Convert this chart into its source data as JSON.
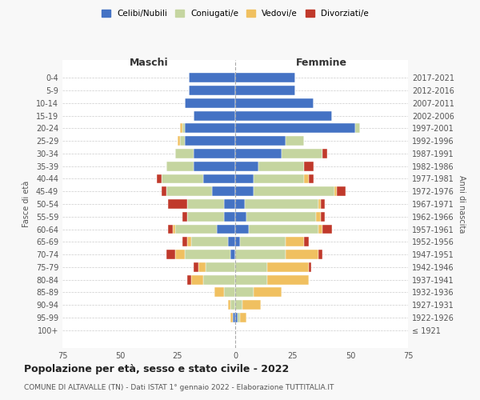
{
  "age_groups": [
    "100+",
    "95-99",
    "90-94",
    "85-89",
    "80-84",
    "75-79",
    "70-74",
    "65-69",
    "60-64",
    "55-59",
    "50-54",
    "45-49",
    "40-44",
    "35-39",
    "30-34",
    "25-29",
    "20-24",
    "15-19",
    "10-14",
    "5-9",
    "0-4"
  ],
  "birth_years": [
    "≤ 1921",
    "1922-1926",
    "1927-1931",
    "1932-1936",
    "1937-1941",
    "1942-1946",
    "1947-1951",
    "1952-1956",
    "1957-1961",
    "1962-1966",
    "1967-1971",
    "1972-1976",
    "1977-1981",
    "1982-1986",
    "1987-1991",
    "1992-1996",
    "1997-2001",
    "2002-2006",
    "2007-2011",
    "2012-2016",
    "2017-2021"
  ],
  "maschi": {
    "celibi": [
      0,
      1,
      0,
      0,
      0,
      0,
      2,
      3,
      8,
      5,
      5,
      10,
      14,
      18,
      18,
      22,
      22,
      18,
      22,
      20,
      20
    ],
    "coniugati": [
      0,
      0,
      2,
      5,
      14,
      13,
      20,
      16,
      18,
      16,
      16,
      20,
      18,
      12,
      8,
      2,
      1,
      0,
      0,
      0,
      0
    ],
    "vedovi": [
      0,
      1,
      1,
      4,
      5,
      3,
      4,
      2,
      1,
      0,
      0,
      0,
      0,
      0,
      0,
      1,
      1,
      0,
      0,
      0,
      0
    ],
    "divorziati": [
      0,
      0,
      0,
      0,
      2,
      2,
      4,
      2,
      2,
      2,
      8,
      2,
      2,
      0,
      0,
      0,
      0,
      0,
      0,
      0,
      0
    ]
  },
  "femmine": {
    "nubili": [
      0,
      1,
      0,
      0,
      0,
      0,
      0,
      2,
      6,
      5,
      4,
      8,
      8,
      10,
      20,
      22,
      52,
      42,
      34,
      26,
      26
    ],
    "coniugate": [
      0,
      1,
      3,
      8,
      14,
      14,
      22,
      20,
      30,
      30,
      32,
      35,
      22,
      20,
      18,
      8,
      2,
      0,
      0,
      0,
      0
    ],
    "vedove": [
      0,
      3,
      8,
      12,
      18,
      18,
      14,
      8,
      2,
      2,
      1,
      1,
      2,
      0,
      0,
      0,
      0,
      0,
      0,
      0,
      0
    ],
    "divorziate": [
      0,
      0,
      0,
      0,
      0,
      1,
      2,
      2,
      4,
      2,
      2,
      4,
      2,
      4,
      2,
      0,
      0,
      0,
      0,
      0,
      0
    ]
  },
  "colors": {
    "celibi_nubili": "#4472c4",
    "coniugati_e": "#c5d5a0",
    "vedovi_e": "#f0c060",
    "divorziati_e": "#c0392b"
  },
  "xlim": 75,
  "title": "Popolazione per età, sesso e stato civile - 2022",
  "subtitle": "COMUNE DI ALTAVALLE (TN) - Dati ISTAT 1° gennaio 2022 - Elaborazione TUTTITALIA.IT",
  "ylabel_left": "Fasce di età",
  "ylabel_right": "Anni di nascita",
  "xlabel_left": "Maschi",
  "xlabel_right": "Femmine",
  "bg_color": "#f8f8f8",
  "plot_bg": "#ffffff",
  "legend_labels": [
    "Celibi/Nubili",
    "Coniugati/e",
    "Vedovi/e",
    "Divorziati/e"
  ]
}
